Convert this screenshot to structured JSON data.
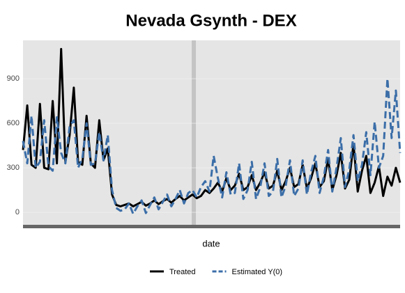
{
  "chart_data": {
    "type": "line",
    "title": "Nevada Gsynth - DEX",
    "x_label": "date",
    "categories": [
      null,
      null,
      null,
      null,
      null,
      null,
      null,
      null,
      null,
      null,
      null,
      null,
      null,
      null,
      null,
      null,
      null,
      null,
      null,
      null,
      null,
      null,
      null,
      null,
      null,
      null,
      null,
      null,
      null,
      null,
      null,
      null,
      null,
      null,
      null,
      null,
      null,
      null,
      null,
      null,
      null,
      null,
      null,
      null,
      null,
      null,
      null,
      null,
      null,
      null,
      null,
      null,
      null,
      null,
      null,
      null,
      null,
      null,
      null,
      null,
      null,
      null,
      null,
      null,
      null,
      null,
      null,
      null,
      null,
      null,
      null,
      null,
      null,
      null,
      null,
      null,
      null,
      null,
      null,
      null,
      null,
      null,
      null,
      null,
      null,
      null,
      null,
      null,
      null,
      null
    ],
    "series": [
      {
        "name": "Treated",
        "color": "#000000",
        "dash": false,
        "values": [
          420,
          720,
          320,
          300,
          730,
          300,
          290,
          750,
          330,
          1100,
          340,
          520,
          840,
          340,
          320,
          650,
          330,
          300,
          620,
          350,
          430,
          120,
          50,
          40,
          50,
          60,
          40,
          55,
          70,
          45,
          60,
          80,
          55,
          75,
          90,
          65,
          90,
          110,
          80,
          100,
          120,
          95,
          110,
          150,
          130,
          160,
          200,
          140,
          230,
          150,
          180,
          260,
          150,
          170,
          250,
          150,
          200,
          270,
          160,
          180,
          280,
          150,
          210,
          300,
          170,
          190,
          320,
          160,
          230,
          330,
          170,
          210,
          360,
          150,
          250,
          400,
          160,
          220,
          460,
          140,
          280,
          380,
          130,
          200,
          310,
          110,
          240,
          180,
          300,
          200
        ]
      },
      {
        "name": "Estimated Y(0)",
        "color": "#3b6ea8",
        "dash": true,
        "values": [
          480,
          330,
          650,
          300,
          340,
          620,
          310,
          280,
          640,
          400,
          330,
          580,
          620,
          300,
          360,
          600,
          320,
          330,
          540,
          350,
          520,
          150,
          30,
          10,
          20,
          60,
          -10,
          40,
          80,
          -5,
          50,
          100,
          20,
          70,
          120,
          40,
          90,
          150,
          60,
          130,
          150,
          100,
          170,
          210,
          140,
          380,
          230,
          100,
          270,
          120,
          130,
          330,
          90,
          150,
          340,
          90,
          170,
          330,
          110,
          140,
          360,
          100,
          180,
          350,
          110,
          160,
          350,
          120,
          270,
          380,
          130,
          240,
          420,
          140,
          300,
          500,
          170,
          290,
          520,
          210,
          320,
          540,
          250,
          610,
          300,
          380,
          900,
          500,
          820,
          400
        ]
      }
    ],
    "ylim": [
      -84,
      1158
    ],
    "yticks": [
      0,
      300,
      600,
      900
    ],
    "grid": true
  }
}
